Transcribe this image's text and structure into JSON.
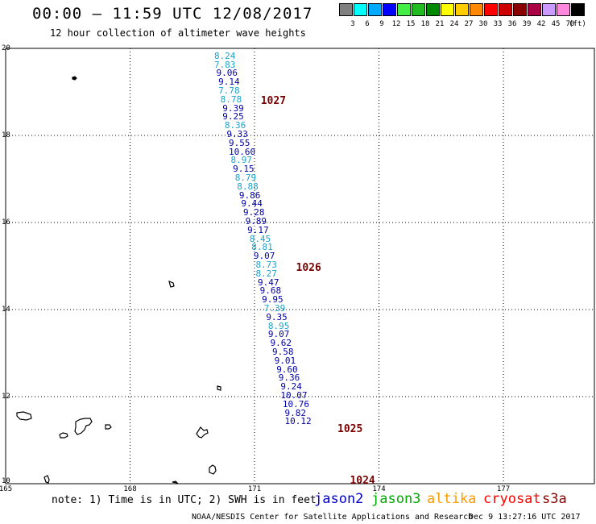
{
  "title": "00:00 – 11:59 UTC 12/08/2017",
  "subtitle": "12 hour collection of altimeter wave heights",
  "colorbar": {
    "colors": [
      "#808080",
      "#00ffff",
      "#00aaff",
      "#0000ff",
      "#44ee44",
      "#22bb22",
      "#008800",
      "#ffff00",
      "#ffcc00",
      "#ff8800",
      "#ff0000",
      "#cc0000",
      "#880000",
      "#aa0044",
      "#cc99ff",
      "#ff88dd",
      "#000000"
    ],
    "labels": [
      "3",
      "6",
      "9",
      "12",
      "15",
      "18",
      "21",
      "24",
      "27",
      "30",
      "33",
      "36",
      "39",
      "42",
      "45",
      "70",
      "(ft)"
    ]
  },
  "map": {
    "lon_range": [
      165,
      179.2
    ],
    "lat_range": [
      10,
      20
    ],
    "lon_ticks": [
      "165",
      "168",
      "171",
      "174",
      "177"
    ],
    "lat_ticks": [
      "20",
      "18",
      "16",
      "14",
      "12",
      "10"
    ],
    "grid": true
  },
  "observations": [
    {
      "lat": 19.82,
      "lon": 170.3,
      "swh": "8.24",
      "color": "#1aa3cc"
    },
    {
      "lat": 19.62,
      "lon": 170.3,
      "swh": "7.83",
      "color": "#1aa3cc"
    },
    {
      "lat": 19.42,
      "lon": 170.35,
      "swh": "9.06",
      "color": "#0000aa"
    },
    {
      "lat": 19.22,
      "lon": 170.4,
      "swh": "9.14",
      "color": "#0000aa"
    },
    {
      "lat": 19.02,
      "lon": 170.4,
      "swh": "7.78",
      "color": "#1aa3cc"
    },
    {
      "lat": 18.82,
      "lon": 170.45,
      "swh": "8.78",
      "color": "#1aa3cc"
    },
    {
      "lat": 18.62,
      "lon": 170.5,
      "swh": "9.39",
      "color": "#0000aa"
    },
    {
      "lat": 18.42,
      "lon": 170.5,
      "swh": "9.25",
      "color": "#0000aa"
    },
    {
      "lat": 18.22,
      "lon": 170.55,
      "swh": "8.36",
      "color": "#1aa3cc"
    },
    {
      "lat": 18.02,
      "lon": 170.6,
      "swh": "9.33",
      "color": "#0000aa"
    },
    {
      "lat": 17.82,
      "lon": 170.65,
      "swh": "9.55",
      "color": "#0000aa"
    },
    {
      "lat": 17.62,
      "lon": 170.65,
      "swh": "10.60",
      "color": "#0000aa"
    },
    {
      "lat": 17.42,
      "lon": 170.7,
      "swh": "8.97",
      "color": "#1aa3cc"
    },
    {
      "lat": 17.22,
      "lon": 170.75,
      "swh": "9.15",
      "color": "#0000aa"
    },
    {
      "lat": 17.02,
      "lon": 170.8,
      "swh": "8.79",
      "color": "#1aa3cc"
    },
    {
      "lat": 16.82,
      "lon": 170.85,
      "swh": "8.88",
      "color": "#1aa3cc"
    },
    {
      "lat": 16.62,
      "lon": 170.9,
      "swh": "9.86",
      "color": "#0000aa"
    },
    {
      "lat": 16.42,
      "lon": 170.95,
      "swh": "9.44",
      "color": "#0000aa"
    },
    {
      "lat": 16.22,
      "lon": 171.0,
      "swh": "9.28",
      "color": "#0000aa"
    },
    {
      "lat": 16.02,
      "lon": 171.05,
      "swh": "9.89",
      "color": "#0000aa"
    },
    {
      "lat": 15.82,
      "lon": 171.1,
      "swh": "9.17",
      "color": "#0000aa"
    },
    {
      "lat": 15.62,
      "lon": 171.15,
      "swh": "8.45",
      "color": "#1aa3cc"
    },
    {
      "lat": 15.42,
      "lon": 171.2,
      "swh": "8.81",
      "color": "#1aa3cc"
    },
    {
      "lat": 15.22,
      "lon": 171.25,
      "swh": "9.07",
      "color": "#0000aa"
    },
    {
      "lat": 15.02,
      "lon": 171.3,
      "swh": "8.73",
      "color": "#1aa3cc"
    },
    {
      "lat": 14.82,
      "lon": 171.3,
      "swh": "8.27",
      "color": "#1aa3cc"
    },
    {
      "lat": 14.62,
      "lon": 171.35,
      "swh": "9.47",
      "color": "#0000aa"
    },
    {
      "lat": 14.42,
      "lon": 171.4,
      "swh": "9.68",
      "color": "#0000aa"
    },
    {
      "lat": 14.22,
      "lon": 171.45,
      "swh": "9.95",
      "color": "#0000aa"
    },
    {
      "lat": 14.02,
      "lon": 171.5,
      "swh": "7.39",
      "color": "#1aa3cc"
    },
    {
      "lat": 13.82,
      "lon": 171.55,
      "swh": "9.35",
      "color": "#0000aa"
    },
    {
      "lat": 13.62,
      "lon": 171.6,
      "swh": "8.95",
      "color": "#1aa3cc"
    },
    {
      "lat": 13.42,
      "lon": 171.6,
      "swh": "9.07",
      "color": "#0000aa"
    },
    {
      "lat": 13.22,
      "lon": 171.65,
      "swh": "9.62",
      "color": "#0000aa"
    },
    {
      "lat": 13.02,
      "lon": 171.7,
      "swh": "9.58",
      "color": "#0000aa"
    },
    {
      "lat": 12.82,
      "lon": 171.75,
      "swh": "9.01",
      "color": "#0000aa"
    },
    {
      "lat": 12.62,
      "lon": 171.8,
      "swh": "9.60",
      "color": "#0000aa"
    },
    {
      "lat": 12.42,
      "lon": 171.85,
      "swh": "9.36",
      "color": "#0000aa"
    },
    {
      "lat": 12.22,
      "lon": 171.9,
      "swh": "9.24",
      "color": "#0000aa"
    },
    {
      "lat": 12.02,
      "lon": 171.9,
      "swh": "10.07",
      "color": "#0000aa"
    },
    {
      "lat": 11.82,
      "lon": 171.95,
      "swh": "10.76",
      "color": "#0000aa"
    },
    {
      "lat": 11.62,
      "lon": 172.0,
      "swh": "9.82",
      "color": "#0000aa"
    },
    {
      "lat": 11.42,
      "lon": 172.0,
      "swh": "10.12",
      "color": "#0000aa"
    }
  ],
  "pressure_labels": [
    {
      "lat": 18.78,
      "lon": 171.15,
      "text": "1027"
    },
    {
      "lat": 14.95,
      "lon": 172.0,
      "text": "1026"
    },
    {
      "lat": 11.25,
      "lon": 173.0,
      "text": "1025"
    },
    {
      "lat": 10.05,
      "lon": 173.3,
      "text": "1024"
    }
  ],
  "note": "note: 1) Time is in UTC; 2) SWH is in feet",
  "legend": [
    {
      "name": "jason2",
      "color": "#0000cc"
    },
    {
      "name": "jason3",
      "color": "#00aa00"
    },
    {
      "name": "altika",
      "color": "#ff9900"
    },
    {
      "name": "cryosat",
      "color": "#ff0000"
    },
    {
      "name": "s3a",
      "color": "#8b0000"
    }
  ],
  "credit_left": "NOAA/NESDIS Center for Satellite Applications and Research",
  "credit_right": "Dec  9 13:27:16 UTC 2017"
}
